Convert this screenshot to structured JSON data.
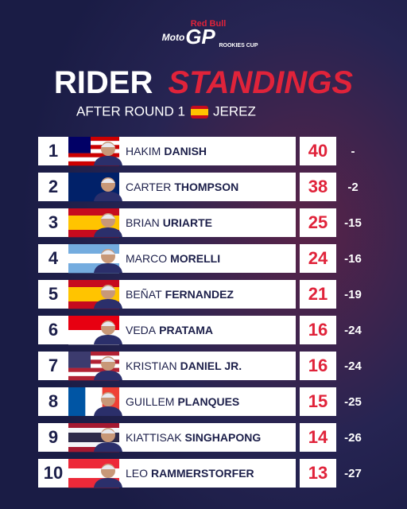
{
  "logo": {
    "brand": "Red Bull",
    "moto": "Moto",
    "gp": "GP",
    "cup": "ROOKIES CUP"
  },
  "header": {
    "title_1": "RIDER",
    "title_2": "STANDINGS",
    "round": "AFTER ROUND 1",
    "venue": "JEREZ"
  },
  "table": {
    "rows": [
      {
        "position": 1,
        "first": "HAKIM",
        "last": "DANISH",
        "points": 40,
        "gap": "-"
      },
      {
        "position": 2,
        "first": "CARTER",
        "last": "THOMPSON",
        "points": 38,
        "gap": -2
      },
      {
        "position": 3,
        "first": "BRIAN",
        "last": "URIARTE",
        "points": 25,
        "gap": -15
      },
      {
        "position": 4,
        "first": "MARCO",
        "last": "MORELLI",
        "points": 24,
        "gap": -16
      },
      {
        "position": 5,
        "first": "BEÑAT",
        "last": "FERNANDEZ",
        "points": 21,
        "gap": -19
      },
      {
        "position": 6,
        "first": "VEDA",
        "last": "PRATAMA",
        "points": 16,
        "gap": -24
      },
      {
        "position": 7,
        "first": "KRISTIAN",
        "last": "DANIEL JR.",
        "points": 16,
        "gap": -24
      },
      {
        "position": 8,
        "first": "GUILLEM",
        "last": "PLANQUES",
        "points": 15,
        "gap": -25
      },
      {
        "position": 9,
        "first": "KIATTISAK",
        "last": "SINGHAPONG",
        "points": 14,
        "gap": -26
      },
      {
        "position": 10,
        "first": "LEO",
        "last": "RAMMERSTORFER",
        "points": 13,
        "gap": -27
      }
    ]
  }
}
